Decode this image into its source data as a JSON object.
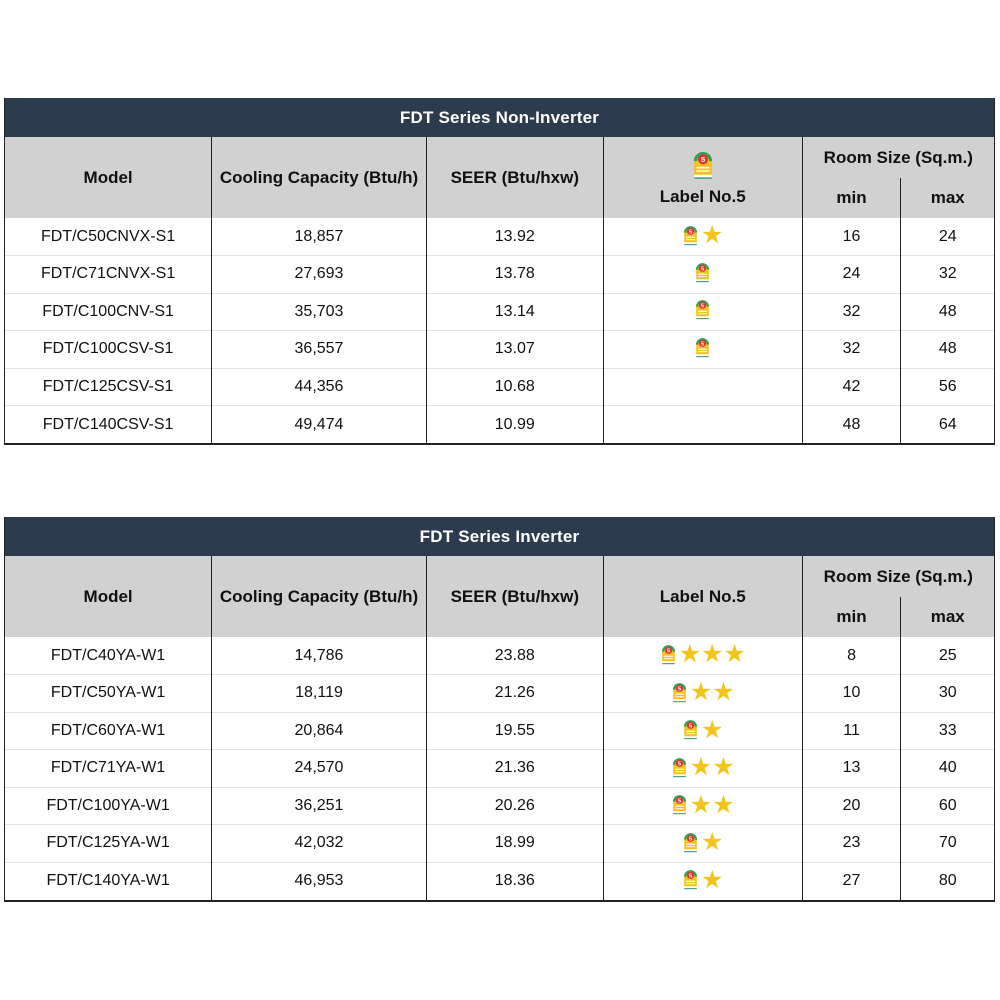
{
  "colors": {
    "title_bar_bg": "#2d3b4e",
    "title_bar_text": "#ffffff",
    "header_row_bg": "#d1d1d1",
    "border_dark": "#222222",
    "row_separator": "#e4e4e4",
    "star_gold": "#f3c41a",
    "label_yellow": "#f2c21d",
    "label_green_arc": "#2fa156",
    "label_red_circle": "#e0372e"
  },
  "icons": {
    "energy_label": "energy-label-no5-icon",
    "star_glyph": "★"
  },
  "tables": [
    {
      "title": "FDT Series Non-Inverter",
      "columns": {
        "model": "Model",
        "cooling": "Cooling Capacity (Btu/h)",
        "seer": "SEER (Btu/hxw)",
        "label": "Label No.5",
        "room": "Room Size (Sq.m.)",
        "min": "min",
        "max": "max"
      },
      "header_has_label_icon": true,
      "rows": [
        {
          "model": "FDT/C50CNVX-S1",
          "cooling": "18,857",
          "seer": "13.92",
          "label_icon": true,
          "stars": 1,
          "min": "16",
          "max": "24"
        },
        {
          "model": "FDT/C71CNVX-S1",
          "cooling": "27,693",
          "seer": "13.78",
          "label_icon": true,
          "stars": 0,
          "min": "24",
          "max": "32"
        },
        {
          "model": "FDT/C100CNV-S1",
          "cooling": "35,703",
          "seer": "13.14",
          "label_icon": true,
          "stars": 0,
          "min": "32",
          "max": "48"
        },
        {
          "model": "FDT/C100CSV-S1",
          "cooling": "36,557",
          "seer": "13.07",
          "label_icon": true,
          "stars": 0,
          "min": "32",
          "max": "48"
        },
        {
          "model": "FDT/C125CSV-S1",
          "cooling": "44,356",
          "seer": "10.68",
          "label_icon": false,
          "stars": 0,
          "min": "42",
          "max": "56"
        },
        {
          "model": "FDT/C140CSV-S1",
          "cooling": "49,474",
          "seer": "10.99",
          "label_icon": false,
          "stars": 0,
          "min": "48",
          "max": "64"
        }
      ]
    },
    {
      "title": "FDT Series Inverter",
      "columns": {
        "model": "Model",
        "cooling": "Cooling Capacity (Btu/h)",
        "seer": "SEER (Btu/hxw)",
        "label": "Label No.5",
        "room": "Room Size (Sq.m.)",
        "min": "min",
        "max": "max"
      },
      "header_has_label_icon": false,
      "rows": [
        {
          "model": "FDT/C40YA-W1",
          "cooling": "14,786",
          "seer": "23.88",
          "label_icon": true,
          "stars": 3,
          "min": "8",
          "max": "25"
        },
        {
          "model": "FDT/C50YA-W1",
          "cooling": "18,119",
          "seer": "21.26",
          "label_icon": true,
          "stars": 2,
          "min": "10",
          "max": "30"
        },
        {
          "model": "FDT/C60YA-W1",
          "cooling": "20,864",
          "seer": "19.55",
          "label_icon": true,
          "stars": 1,
          "min": "11",
          "max": "33"
        },
        {
          "model": "FDT/C71YA-W1",
          "cooling": "24,570",
          "seer": "21.36",
          "label_icon": true,
          "stars": 2,
          "min": "13",
          "max": "40"
        },
        {
          "model": "FDT/C100YA-W1",
          "cooling": "36,251",
          "seer": "20.26",
          "label_icon": true,
          "stars": 2,
          "min": "20",
          "max": "60"
        },
        {
          "model": "FDT/C125YA-W1",
          "cooling": "42,032",
          "seer": "18.99",
          "label_icon": true,
          "stars": 1,
          "min": "23",
          "max": "70"
        },
        {
          "model": "FDT/C140YA-W1",
          "cooling": "46,953",
          "seer": "18.36",
          "label_icon": true,
          "stars": 1,
          "min": "27",
          "max": "80"
        }
      ]
    }
  ]
}
